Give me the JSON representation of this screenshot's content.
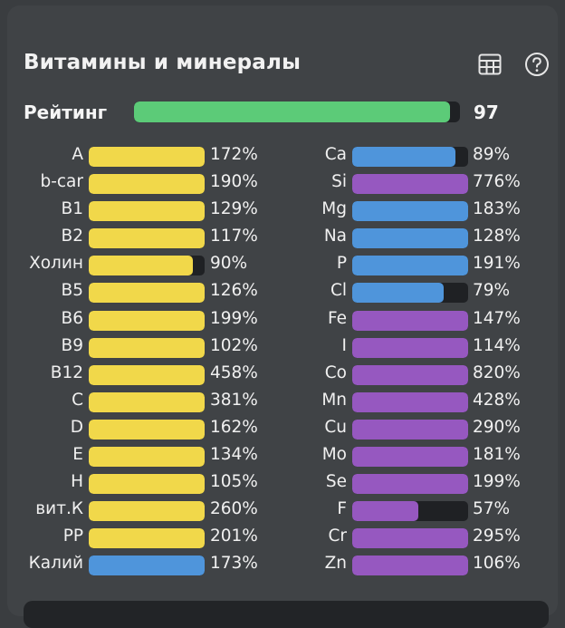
{
  "title": "Витамины и минералы",
  "icons": {
    "table": "table-icon",
    "help": "help-circle-icon"
  },
  "colors": {
    "vitamin": "#f1d84a",
    "mineral_blue": "#4f95db",
    "mineral_purple": "#9658c0",
    "rating": "#5ccb78"
  },
  "rating": {
    "label": "Рейтинг",
    "value": "97",
    "fraction": 0.97
  },
  "vitamins": [
    {
      "name": "A",
      "percent": "172%",
      "fill": 1.0,
      "color": "vitamin"
    },
    {
      "name": "b-car",
      "percent": "190%",
      "fill": 1.0,
      "color": "vitamin"
    },
    {
      "name": "B1",
      "percent": "129%",
      "fill": 1.0,
      "color": "vitamin"
    },
    {
      "name": "B2",
      "percent": "117%",
      "fill": 1.0,
      "color": "vitamin"
    },
    {
      "name": "Холин",
      "percent": "90%",
      "fill": 0.9,
      "color": "vitamin"
    },
    {
      "name": "B5",
      "percent": "126%",
      "fill": 1.0,
      "color": "vitamin"
    },
    {
      "name": "B6",
      "percent": "199%",
      "fill": 1.0,
      "color": "vitamin"
    },
    {
      "name": "B9",
      "percent": "102%",
      "fill": 1.0,
      "color": "vitamin"
    },
    {
      "name": "B12",
      "percent": "458%",
      "fill": 1.0,
      "color": "vitamin"
    },
    {
      "name": "C",
      "percent": "381%",
      "fill": 1.0,
      "color": "vitamin"
    },
    {
      "name": "D",
      "percent": "162%",
      "fill": 1.0,
      "color": "vitamin"
    },
    {
      "name": "E",
      "percent": "134%",
      "fill": 1.0,
      "color": "vitamin"
    },
    {
      "name": "H",
      "percent": "105%",
      "fill": 1.0,
      "color": "vitamin"
    },
    {
      "name": "вит.К",
      "percent": "260%",
      "fill": 1.0,
      "color": "vitamin"
    },
    {
      "name": "PP",
      "percent": "201%",
      "fill": 1.0,
      "color": "vitamin"
    },
    {
      "name": "Калий",
      "percent": "173%",
      "fill": 1.0,
      "color": "mineral_blue"
    }
  ],
  "minerals": [
    {
      "name": "Ca",
      "percent": "89%",
      "fill": 0.89,
      "color": "mineral_blue"
    },
    {
      "name": "Si",
      "percent": "776%",
      "fill": 1.0,
      "color": "mineral_purple"
    },
    {
      "name": "Mg",
      "percent": "183%",
      "fill": 1.0,
      "color": "mineral_blue"
    },
    {
      "name": "Na",
      "percent": "128%",
      "fill": 1.0,
      "color": "mineral_blue"
    },
    {
      "name": "P",
      "percent": "191%",
      "fill": 1.0,
      "color": "mineral_blue"
    },
    {
      "name": "Cl",
      "percent": "79%",
      "fill": 0.79,
      "color": "mineral_blue"
    },
    {
      "name": "Fe",
      "percent": "147%",
      "fill": 1.0,
      "color": "mineral_purple"
    },
    {
      "name": "I",
      "percent": "114%",
      "fill": 1.0,
      "color": "mineral_purple"
    },
    {
      "name": "Co",
      "percent": "820%",
      "fill": 1.0,
      "color": "mineral_purple"
    },
    {
      "name": "Mn",
      "percent": "428%",
      "fill": 1.0,
      "color": "mineral_purple"
    },
    {
      "name": "Cu",
      "percent": "290%",
      "fill": 1.0,
      "color": "mineral_purple"
    },
    {
      "name": "Mo",
      "percent": "181%",
      "fill": 1.0,
      "color": "mineral_purple"
    },
    {
      "name": "Se",
      "percent": "199%",
      "fill": 1.0,
      "color": "mineral_purple"
    },
    {
      "name": "F",
      "percent": "57%",
      "fill": 0.57,
      "color": "mineral_purple"
    },
    {
      "name": "Cr",
      "percent": "295%",
      "fill": 1.0,
      "color": "mineral_purple"
    },
    {
      "name": "Zn",
      "percent": "106%",
      "fill": 1.0,
      "color": "mineral_purple"
    }
  ]
}
